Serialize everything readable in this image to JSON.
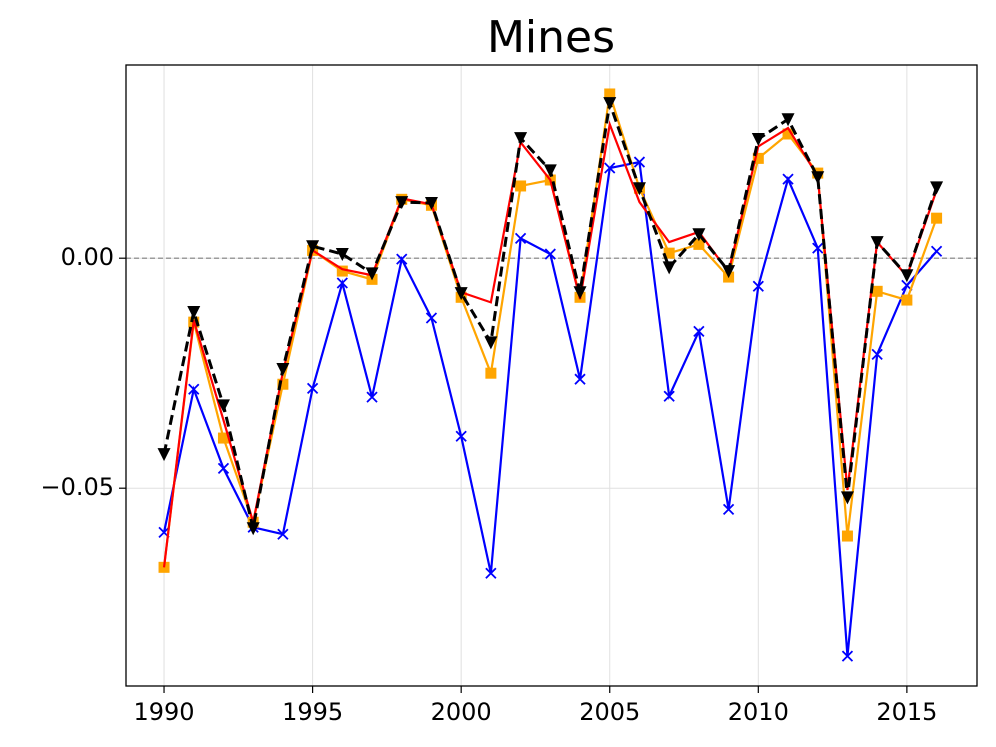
{
  "chart_data": {
    "type": "line",
    "title": "Mines",
    "x": [
      1990,
      1991,
      1992,
      1993,
      1994,
      1995,
      1996,
      1997,
      1998,
      1999,
      2000,
      2001,
      2002,
      2003,
      2004,
      2005,
      2006,
      2007,
      2008,
      2009,
      2010,
      2011,
      2012,
      2013,
      2014,
      2015,
      2016
    ],
    "series": [
      {
        "color": "#0000ff",
        "marker": "x",
        "dashed": false,
        "values": [
          -0.0596,
          -0.0285,
          -0.0457,
          -0.0585,
          -0.06,
          -0.0283,
          -0.0054,
          -0.0302,
          -0.0002,
          -0.013,
          -0.0387,
          -0.0685,
          0.0043,
          0.0009,
          -0.0263,
          0.0196,
          0.0209,
          -0.03,
          -0.0159,
          -0.0546,
          -0.0061,
          0.0172,
          0.0022,
          -0.0865,
          -0.0209,
          -0.0059,
          0.0015
        ]
      },
      {
        "color": "#ffa500",
        "marker": "square",
        "dashed": false,
        "values": [
          -0.0672,
          -0.0139,
          -0.0391,
          -0.0574,
          -0.0274,
          0.0017,
          -0.0028,
          -0.0046,
          0.0128,
          0.0115,
          -0.0085,
          -0.025,
          0.0157,
          0.017,
          -0.0085,
          0.0357,
          0.0152,
          0.0011,
          0.003,
          -0.0041,
          0.0217,
          0.027,
          0.0185,
          -0.0604,
          -0.0072,
          -0.0091,
          0.0087
        ]
      },
      {
        "color": "#ff0000",
        "marker": null,
        "dashed": false,
        "values": [
          -0.0672,
          -0.0135,
          -0.0352,
          -0.0574,
          -0.0248,
          0.0017,
          -0.0024,
          -0.0037,
          0.013,
          0.0117,
          -0.0074,
          -0.0096,
          0.0252,
          0.017,
          -0.0089,
          0.0291,
          0.0122,
          0.0035,
          0.0057,
          -0.003,
          0.0243,
          0.0283,
          0.0178,
          -0.0504,
          0.0035,
          -0.0039,
          0.0148
        ]
      },
      {
        "color": "#000000",
        "marker": "triangle-down",
        "dashed": true,
        "values": [
          -0.0426,
          -0.0117,
          -0.032,
          -0.0587,
          -0.0241,
          0.0026,
          0.0009,
          -0.0033,
          0.0122,
          0.012,
          -0.0076,
          -0.0183,
          0.0261,
          0.0191,
          -0.0074,
          0.0337,
          0.0152,
          -0.002,
          0.0052,
          -0.0028,
          0.0259,
          0.0302,
          0.0176,
          -0.052,
          0.0035,
          -0.0037,
          0.0154
        ]
      }
    ],
    "xlim": [
      1988.72,
      2017.36
    ],
    "xticks": [
      1990,
      1995,
      2000,
      2005,
      2010,
      2015
    ],
    "ylim": [
      -0.093,
      0.042
    ],
    "yticks": [
      {
        "value": -0.05,
        "label": "−0.05"
      },
      {
        "value": 0,
        "label": "0.00"
      }
    ],
    "grid": true,
    "hline": {
      "value": 0,
      "color": "#808080"
    }
  }
}
